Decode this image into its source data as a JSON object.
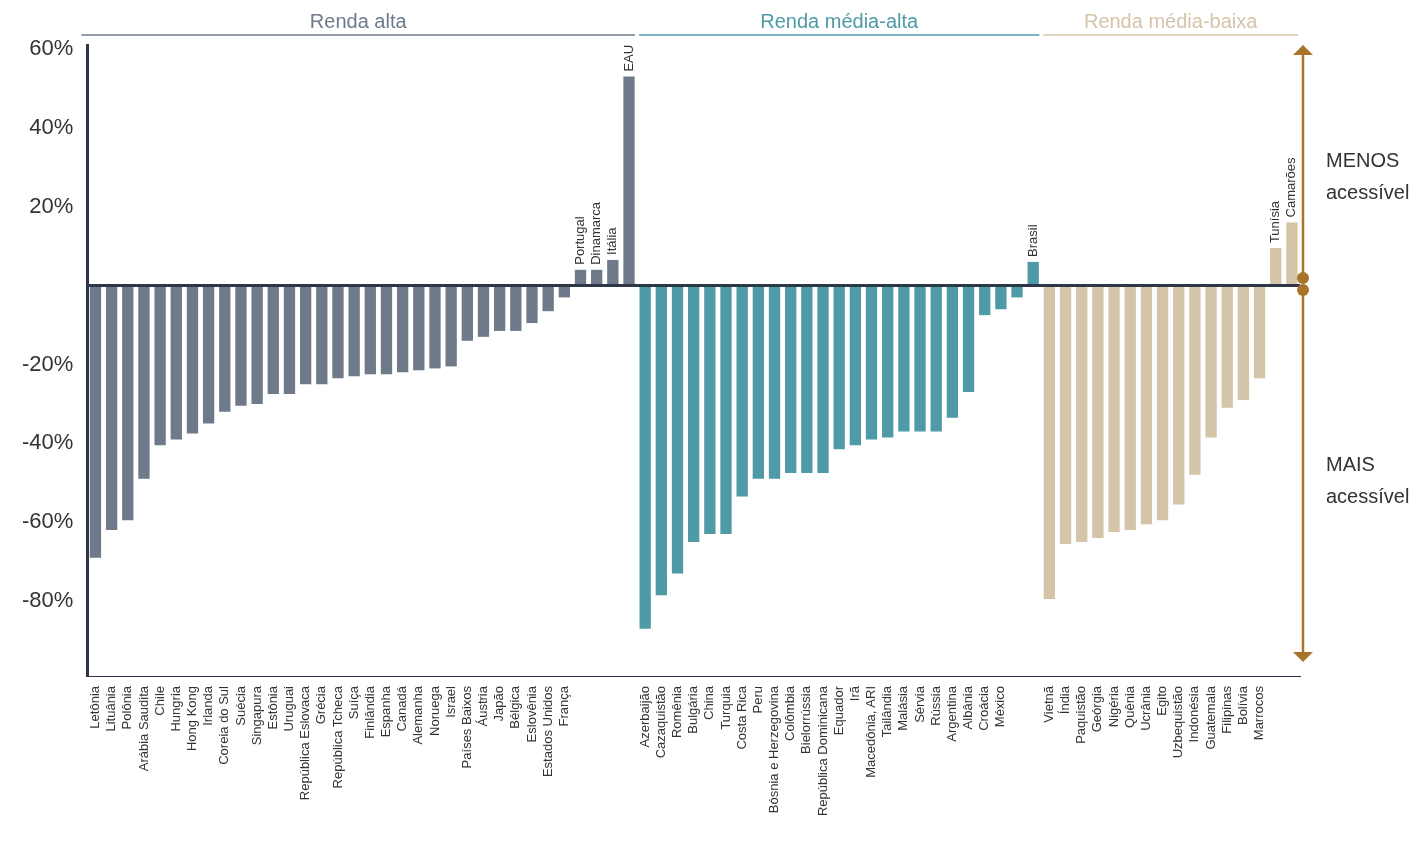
{
  "chart_data": {
    "type": "bar",
    "categories": [
      "Letônia",
      "Lituânia",
      "Polônia",
      "Arábia Saudita",
      "Chile",
      "Hungria",
      "Hong Kong",
      "Irlanda",
      "Coreia do Sul",
      "Suécia",
      "Singapura",
      "Estônia",
      "Uruguai",
      "República Eslovaca",
      "Grécia",
      "República Tcheca",
      "Suíça",
      "Finlândia",
      "Espanha",
      "Canadá",
      "Alemanha",
      "Noruega",
      "Israel",
      "Países Baixos",
      "Áustria",
      "Japão",
      "Bélgica",
      "Eslovênia",
      "Estados Unidos",
      "França",
      "Portugal",
      "Dinamarca",
      "Itália",
      "EAU",
      "Azerbaijão",
      "Cazaquistão",
      "Romênia",
      "Bulgária",
      "China",
      "Turquia",
      "Costa Rica",
      "Peru",
      "Bósnia e Herzegovina",
      "Colômbia",
      "Bielorrússia",
      "República Dominicana",
      "Equador",
      "Irã",
      "Macedônia, ARI",
      "Tailândia",
      "Malásia",
      "Sérvia",
      "Rússia",
      "Argentina",
      "Albânia",
      "Croácia",
      "México",
      null,
      "Brasil",
      "Vietnã",
      "Índia",
      "Paquistão",
      "Geórgia",
      "Nigéria",
      "Quênia",
      "Ucrânia",
      "Egito",
      "Uzbequistão",
      "Indonésia",
      "Guatemala",
      "Filipinas",
      "Bolívia",
      "Marrocos",
      "Tunísia",
      "Camarões"
    ],
    "series": [
      {
        "name": "Renda alta",
        "color": "#6e7a8a",
        "values": [
          -69,
          -62,
          -59.5,
          -49,
          -40.5,
          -39,
          -37.5,
          -35,
          -32,
          -30.5,
          -30,
          -27.5,
          -27.5,
          -25,
          -25,
          -23.5,
          -23,
          -22.5,
          -22.5,
          -22,
          -21.5,
          -21,
          -20.5,
          -14,
          -13,
          -11.5,
          -11.5,
          -9.5,
          -6.5,
          -3,
          4,
          4,
          6.5,
          53,
          null,
          null,
          null,
          null,
          null,
          null,
          null,
          null,
          null,
          null,
          null,
          null,
          null,
          null,
          null,
          null,
          null,
          null,
          null,
          null,
          null,
          null,
          null,
          null,
          null,
          null,
          null,
          null,
          null,
          null,
          null,
          null,
          null,
          null,
          null,
          null,
          null,
          null,
          null,
          null,
          null
        ]
      },
      {
        "name": "Renda média-alta",
        "color": "#4e9aa6",
        "values": [
          null,
          null,
          null,
          null,
          null,
          null,
          null,
          null,
          null,
          null,
          null,
          null,
          null,
          null,
          null,
          null,
          null,
          null,
          null,
          null,
          null,
          null,
          null,
          null,
          null,
          null,
          null,
          null,
          null,
          null,
          null,
          null,
          null,
          null,
          -87,
          -78.5,
          -73,
          -65,
          -63,
          -63,
          -53.5,
          -49,
          -49,
          -47.5,
          -47.5,
          -47.5,
          -41.5,
          -40.5,
          -39,
          -38.5,
          -37,
          -37,
          -37,
          -33.5,
          -27,
          -7.5,
          -6,
          -3,
          6,
          null,
          null,
          null,
          null,
          null,
          null,
          null,
          null,
          null,
          null,
          null,
          null,
          null,
          null,
          null,
          null
        ]
      },
      {
        "name": "Renda média-baixa",
        "color": "#d4c4a8",
        "values": [
          null,
          null,
          null,
          null,
          null,
          null,
          null,
          null,
          null,
          null,
          null,
          null,
          null,
          null,
          null,
          null,
          null,
          null,
          null,
          null,
          null,
          null,
          null,
          null,
          null,
          null,
          null,
          null,
          null,
          null,
          null,
          null,
          null,
          null,
          null,
          null,
          null,
          null,
          null,
          null,
          null,
          null,
          null,
          null,
          null,
          null,
          null,
          null,
          null,
          null,
          null,
          null,
          null,
          null,
          null,
          null,
          null,
          null,
          null,
          -79.5,
          -65.5,
          -65,
          -64,
          -62.5,
          -62,
          -60.5,
          -59.5,
          -55.5,
          -48,
          -38.5,
          -31,
          -29,
          -23.5,
          9.5,
          16
        ]
      }
    ],
    "ylim": [
      -99,
      61
    ],
    "yticks": [
      {
        "value": 60,
        "label": "60%"
      },
      {
        "value": 40,
        "label": "40%"
      },
      {
        "value": 20,
        "label": "20%"
      },
      {
        "value": -20,
        "label": "-20%"
      },
      {
        "value": -40,
        "label": "-40%"
      },
      {
        "value": -60,
        "label": "-60%"
      },
      {
        "value": -80,
        "label": "-80%"
      }
    ],
    "grid": false,
    "legend": false,
    "ref_lines": [
      {
        "axis": "y",
        "value": 0,
        "color": "#2d3748"
      }
    ],
    "annotations": [
      "MENOS acessível",
      "MAIS acessível"
    ]
  }
}
